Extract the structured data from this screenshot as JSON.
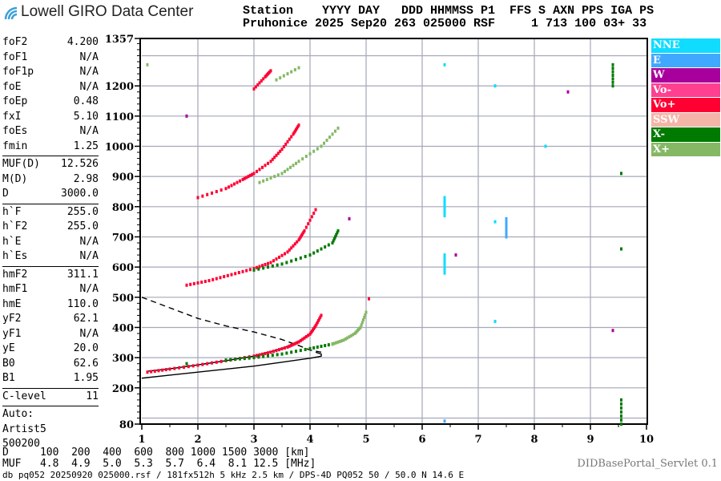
{
  "logo": {
    "text": "Lowell GIRO Data Center",
    "icon": "wifi-arc-icon"
  },
  "header": {
    "line1": "Station    YYYY DAY   DDD HHMMSS P1  FFS S AXN PPS IGA PS",
    "line2": "Pruhonice 2025 Sep20 263 025000 RSF     1 713 100 03+ 33"
  },
  "params": {
    "group1": [
      [
        "foF2",
        "4.200"
      ],
      [
        "foF1",
        "N/A"
      ],
      [
        "foF1p",
        "N/A"
      ],
      [
        "foE",
        "N/A"
      ],
      [
        "foEp",
        "0.48"
      ],
      [
        "fxI",
        "5.10"
      ],
      [
        "foEs",
        "N/A"
      ],
      [
        "fmin",
        "1.25"
      ]
    ],
    "group2": [
      [
        "MUF(D)",
        "12.526"
      ],
      [
        "M(D)",
        "2.98"
      ],
      [
        "D",
        "3000.0"
      ]
    ],
    "group3": [
      [
        "h`F",
        "255.0"
      ],
      [
        "h`F2",
        "255.0"
      ],
      [
        "h`E",
        "N/A"
      ],
      [
        "h`Es",
        "N/A"
      ]
    ],
    "group4": [
      [
        "hmF2",
        "311.1"
      ],
      [
        "hmF1",
        "N/A"
      ],
      [
        "hmE",
        "110.0"
      ],
      [
        "yF2",
        "62.1"
      ],
      [
        "yF1",
        "N/A"
      ],
      [
        "yE",
        "20.0"
      ],
      [
        "B0",
        "62.6"
      ],
      [
        "B1",
        "1.95"
      ]
    ],
    "group5": [
      [
        "C-level",
        "11"
      ]
    ],
    "auto": [
      "Auto:",
      "Artist5",
      "500200"
    ]
  },
  "legend": [
    {
      "label": "NNE",
      "color": "#10dcff"
    },
    {
      "label": "E",
      "color": "#40a8ff"
    },
    {
      "label": "W",
      "color": "#a8009c"
    },
    {
      "label": "Vo-",
      "color": "#ff4090"
    },
    {
      "label": "Vo+",
      "color": "#ff0033"
    },
    {
      "label": "SSW",
      "color": "#f5b4a8"
    },
    {
      "label": "X-",
      "color": "#007a00"
    },
    {
      "label": "X+",
      "color": "#85b865"
    }
  ],
  "dmuf": {
    "line1": "D     100  200  400  600  800 1000 1500 3000 [km]",
    "line2": "MUF   4.8  4.9  5.0  5.3  5.7  6.4  8.1 12.5 [MHz]"
  },
  "footer": "db pq052 20250920 025000.rsf / 181fx512h 5 kHz 2.5 km / DPS-4D PQ052 50 / 50.0 N 14.6 E",
  "servlet": "DIDBasePortal_Servlet 0.1",
  "chart_data": {
    "type": "scatter",
    "xlim": [
      1,
      10
    ],
    "ylim": [
      80,
      1357
    ],
    "x_ticks": [
      1,
      2,
      3,
      4,
      5,
      6,
      7,
      8,
      9,
      10
    ],
    "y_ticks": [
      80,
      200,
      300,
      400,
      500,
      600,
      700,
      800,
      900,
      1000,
      1100,
      1200,
      1357
    ],
    "grid": true,
    "traces": [
      {
        "pol": "Vo+",
        "points": [
          [
            1.1,
            252
          ],
          [
            1.5,
            262
          ],
          [
            2,
            275
          ],
          [
            2.5,
            290
          ],
          [
            3,
            305
          ],
          [
            3.3,
            318
          ],
          [
            3.6,
            335
          ],
          [
            3.8,
            352
          ],
          [
            4.0,
            378
          ],
          [
            4.1,
            405
          ],
          [
            4.2,
            440
          ],
          [
            5.05,
            495
          ],
          [
            1.8,
            540
          ],
          [
            2.2,
            555
          ],
          [
            2.6,
            575
          ],
          [
            3,
            595
          ],
          [
            3.3,
            615
          ],
          [
            3.6,
            650
          ],
          [
            3.8,
            690
          ],
          [
            3.9,
            720
          ],
          [
            4.1,
            790
          ],
          [
            2,
            830
          ],
          [
            2.5,
            860
          ],
          [
            2.8,
            890
          ],
          [
            3,
            910
          ],
          [
            3.3,
            950
          ],
          [
            3.5,
            990
          ],
          [
            3.7,
            1040
          ],
          [
            3.8,
            1070
          ],
          [
            3,
            1190
          ],
          [
            3.2,
            1230
          ],
          [
            3.3,
            1250
          ]
        ]
      },
      {
        "pol": "X-",
        "points": [
          [
            1.8,
            280
          ],
          [
            2.5,
            292
          ],
          [
            3,
            300
          ],
          [
            3.5,
            312
          ],
          [
            4,
            330
          ],
          [
            4.4,
            345
          ],
          [
            3,
            590
          ],
          [
            3.5,
            610
          ],
          [
            4,
            640
          ],
          [
            4.4,
            680
          ],
          [
            4.5,
            720
          ],
          [
            9.55,
            660
          ],
          [
            9.55,
            910
          ],
          [
            9.4,
            1200
          ],
          [
            9.4,
            1270
          ],
          [
            9.55,
            80
          ],
          [
            9.55,
            160
          ]
        ]
      },
      {
        "pol": "X+",
        "points": [
          [
            4.4,
            345
          ],
          [
            4.6,
            358
          ],
          [
            4.8,
            380
          ],
          [
            4.9,
            400
          ],
          [
            5.0,
            450
          ],
          [
            3.1,
            880
          ],
          [
            3.5,
            910
          ],
          [
            3.8,
            950
          ],
          [
            4.2,
            1000
          ],
          [
            4.5,
            1060
          ],
          [
            3.4,
            1220
          ],
          [
            3.8,
            1260
          ],
          [
            1.1,
            1270
          ]
        ]
      },
      {
        "pol": "NNE",
        "points": [
          [
            6.4,
            580
          ],
          [
            6.4,
            640
          ],
          [
            6.4,
            770
          ],
          [
            6.4,
            830
          ],
          [
            7.3,
            420
          ],
          [
            7.3,
            750
          ],
          [
            7.3,
            1200
          ],
          [
            6.4,
            1270
          ],
          [
            8.2,
            1000
          ]
        ]
      },
      {
        "pol": "E",
        "points": [
          [
            7.5,
            700
          ],
          [
            7.5,
            760
          ],
          [
            6.4,
            90
          ]
        ]
      },
      {
        "pol": "W",
        "points": [
          [
            4.7,
            760
          ],
          [
            6.6,
            640
          ],
          [
            8.6,
            1180
          ],
          [
            9.4,
            390
          ],
          [
            1.8,
            1100
          ]
        ]
      }
    ],
    "curves": [
      {
        "style": "solid",
        "points": [
          [
            1,
            232
          ],
          [
            1.5,
            242
          ],
          [
            2,
            252
          ],
          [
            2.5,
            262
          ],
          [
            3,
            272
          ],
          [
            3.5,
            285
          ],
          [
            4,
            298
          ],
          [
            4.2,
            305
          ],
          [
            4.2,
            312
          ],
          [
            4.1,
            318
          ]
        ]
      },
      {
        "style": "solid",
        "points": [
          [
            1.1,
            255
          ],
          [
            1.5,
            263
          ],
          [
            2,
            276
          ],
          [
            2.5,
            290
          ],
          [
            3,
            305
          ],
          [
            3.5,
            330
          ],
          [
            3.8,
            355
          ],
          [
            4,
            380
          ],
          [
            4.2,
            440
          ]
        ]
      },
      {
        "style": "dashed",
        "points": [
          [
            1,
            500
          ],
          [
            1.5,
            465
          ],
          [
            2,
            430
          ],
          [
            2.5,
            405
          ],
          [
            3,
            385
          ],
          [
            3.5,
            360
          ],
          [
            3.8,
            340
          ],
          [
            4.0,
            325
          ],
          [
            4.2,
            318
          ]
        ]
      }
    ]
  }
}
